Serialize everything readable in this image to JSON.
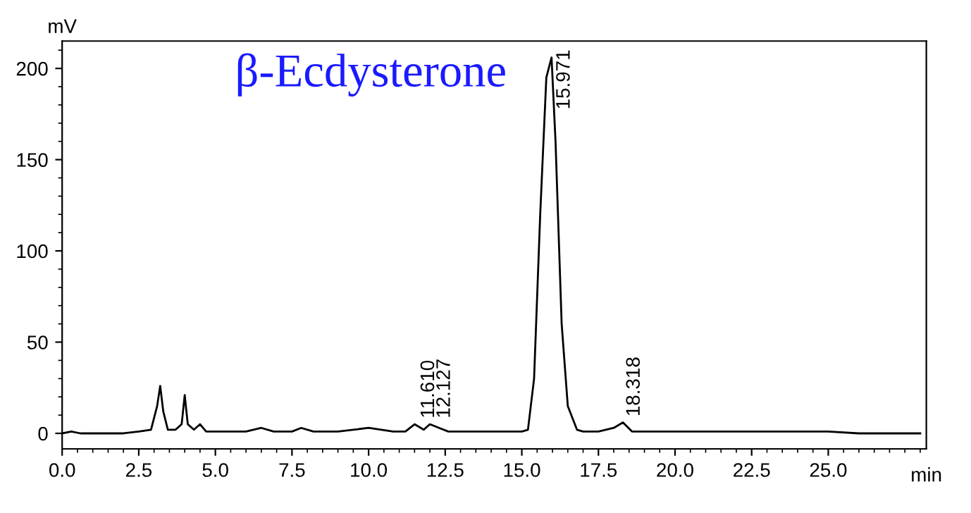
{
  "chart_data": {
    "type": "line",
    "title": "β-Ecdysterone",
    "xlabel": "min",
    "ylabel": "mV",
    "x": [
      0,
      0.3,
      0.6,
      1,
      2,
      2.5,
      2.9,
      3.1,
      3.2,
      3.3,
      3.45,
      3.7,
      3.9,
      4.0,
      4.1,
      4.3,
      4.5,
      4.7,
      5,
      6,
      6.5,
      6.9,
      7.5,
      7.8,
      8.2,
      9,
      10,
      10.8,
      11.2,
      11.5,
      11.8,
      12.0,
      12.3,
      12.6,
      13,
      14,
      15,
      15.2,
      15.4,
      15.6,
      15.8,
      15.97,
      16.1,
      16.3,
      16.5,
      16.8,
      17,
      17.5,
      18.0,
      18.3,
      18.6,
      19,
      20,
      22,
      24,
      25,
      26,
      27,
      28
    ],
    "series": [
      {
        "color": "#000000",
        "values": [
          0,
          1,
          0,
          0,
          0,
          1,
          2,
          15,
          26,
          12,
          2,
          2,
          5,
          21,
          5,
          2,
          5,
          1,
          1,
          1,
          3,
          1,
          1,
          3,
          1,
          1,
          3,
          1,
          1,
          5,
          2,
          5,
          3,
          1,
          1,
          1,
          1,
          2,
          30,
          120,
          195,
          206,
          160,
          60,
          15,
          2,
          1,
          1,
          3,
          6,
          1,
          1,
          1,
          1,
          1,
          1,
          0,
          0,
          0
        ]
      }
    ],
    "annotations": [
      {
        "text": "11.610",
        "x": 11.61,
        "y": 5
      },
      {
        "text": "12.127",
        "x": 12.127,
        "y": 5
      },
      {
        "text": "15.971",
        "x": 15.971,
        "y": 206
      },
      {
        "text": "18.318",
        "x": 18.318,
        "y": 6
      }
    ],
    "xlim": [
      0,
      28.2
    ],
    "ylim": [
      -8.5,
      215
    ],
    "xticks": [
      {
        "value": 0,
        "label": "0.0"
      },
      {
        "value": 2.5,
        "label": "2.5"
      },
      {
        "value": 5,
        "label": "5.0"
      },
      {
        "value": 7.5,
        "label": "7.5"
      },
      {
        "value": 10,
        "label": "10.0"
      },
      {
        "value": 12.5,
        "label": "12.5"
      },
      {
        "value": 15,
        "label": "15.0"
      },
      {
        "value": 17.5,
        "label": "17.5"
      },
      {
        "value": 20,
        "label": "20.0"
      },
      {
        "value": 22.5,
        "label": "22.5"
      },
      {
        "value": 25,
        "label": "25.0"
      }
    ],
    "yticks": [
      0,
      50,
      100,
      150,
      200
    ],
    "grid": false,
    "legend": false,
    "marker": "none",
    "line_style": "solid"
  }
}
